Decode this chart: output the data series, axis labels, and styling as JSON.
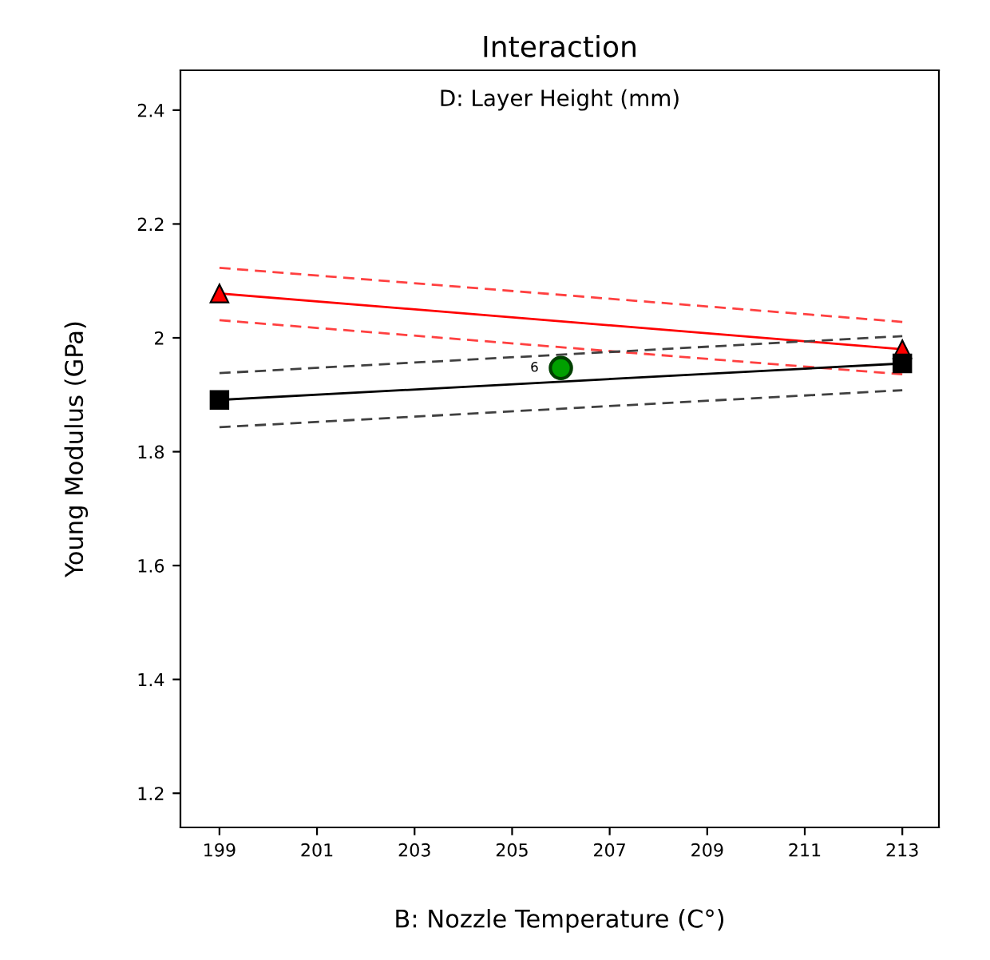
{
  "chart_data": {
    "type": "line",
    "title": "Interaction",
    "subtitle": "D: Layer Height (mm)",
    "xlabel": "B: Nozzle Temperature (C°)",
    "ylabel": "Young Modulus (GPa)",
    "x": [
      199,
      213
    ],
    "series": [
      {
        "color": "#ff0000",
        "marker": "triangle",
        "values": [
          2.078,
          1.98
        ]
      },
      {
        "color": "#ff4040",
        "line_style": "dashed",
        "values": [
          2.031,
          1.936
        ]
      },
      {
        "color": "#ff4040",
        "line_style": "dashed",
        "values": [
          2.123,
          2.028
        ]
      },
      {
        "color": "#000000",
        "marker": "square",
        "values": [
          1.891,
          1.955
        ]
      },
      {
        "color": "#404040",
        "line_style": "dashed",
        "values": [
          1.843,
          1.908
        ]
      },
      {
        "color": "#404040",
        "line_style": "dashed",
        "values": [
          1.938,
          2.003
        ]
      },
      {
        "type": "scatter",
        "color": "#00a000",
        "marker": "circle",
        "x": [
          206
        ],
        "values": [
          1.947
        ]
      }
    ],
    "annotations": [
      {
        "text": "6",
        "x": 206,
        "y": 1.947
      }
    ],
    "xlim": [
      198.2,
      213.75
    ],
    "ylim": [
      1.14,
      2.47
    ],
    "xticks": [
      199,
      201,
      203,
      205,
      207,
      209,
      211,
      213
    ],
    "yticks": [
      1.2,
      1.4,
      1.6,
      1.8,
      2,
      2.2,
      2.4
    ],
    "grid": false
  }
}
